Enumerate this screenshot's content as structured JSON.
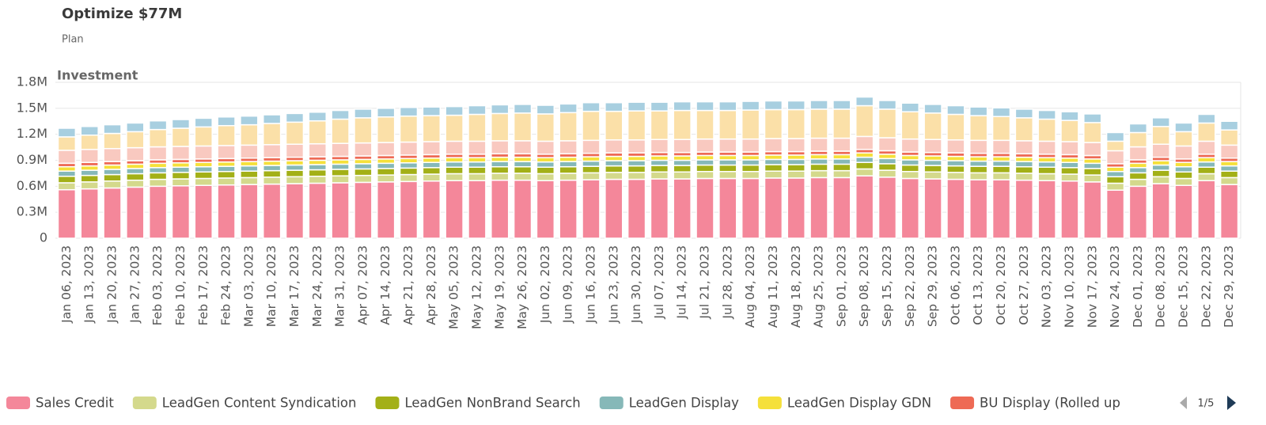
{
  "chart_data": {
    "type": "stacked_bar",
    "title": "Optimize $77M",
    "subtitle": "Plan",
    "panel_title": "Investment",
    "legend_page": "1/5",
    "grid": true,
    "ylim": [
      0,
      1800000
    ],
    "yticks": [
      0,
      {
        "value": 300000,
        "label": "0.3M"
      },
      {
        "value": 600000,
        "label": "0.6M"
      },
      {
        "value": 900000,
        "label": "0.9M"
      },
      {
        "value": 1200000,
        "label": "1.2M"
      },
      {
        "value": 1500000,
        "label": "1.5M"
      },
      {
        "value": 1800000,
        "label": "1.8M"
      }
    ],
    "categories": [
      "Jan 06, 2023",
      "Jan 13, 2023",
      "Jan 20, 2023",
      "Jan 27, 2023",
      "Feb 03, 2023",
      "Feb 10, 2023",
      "Feb 17, 2023",
      "Feb 24, 2023",
      "Mar 03, 2023",
      "Mar 10, 2023",
      "Mar 17, 2023",
      "Mar 24, 2023",
      "Mar 31, 2023",
      "Apr 07, 2023",
      "Apr 14, 2023",
      "Apr 21, 2023",
      "Apr 28, 2023",
      "May 05, 2023",
      "May 12, 2023",
      "May 19, 2023",
      "May 26, 2023",
      "Jun 02, 2023",
      "Jun 09, 2023",
      "Jun 16, 2023",
      "Jun 23, 2023",
      "Jun 30, 2023",
      "Jul 07, 2023",
      "Jul 14, 2023",
      "Jul 21, 2023",
      "Jul 28, 2023",
      "Aug 04, 2023",
      "Aug 11, 2023",
      "Aug 18, 2023",
      "Aug 25, 2023",
      "Sep 01, 2023",
      "Sep 08, 2023",
      "Sep 15, 2023",
      "Sep 22, 2023",
      "Sep 29, 2023",
      "Oct 06, 2023",
      "Oct 13, 2023",
      "Oct 20, 2023",
      "Oct 27, 2023",
      "Nov 03, 2023",
      "Nov 10, 2023",
      "Nov 17, 2023",
      "Nov 24, 2023",
      "Dec 01, 2023",
      "Dec 08, 2023",
      "Dec 15, 2023",
      "Dec 22, 2023",
      "Dec 29, 2023"
    ],
    "series": [
      {
        "name": "Sales Credit",
        "color": "#f4879a",
        "values": [
          560000,
          570000,
          580000,
          590000,
          600000,
          605000,
          610000,
          615000,
          620000,
          625000,
          630000,
          635000,
          640000,
          645000,
          650000,
          655000,
          660000,
          665000,
          665000,
          670000,
          670000,
          665000,
          670000,
          675000,
          680000,
          680000,
          685000,
          685000,
          690000,
          690000,
          690000,
          695000,
          695000,
          700000,
          700000,
          720000,
          705000,
          690000,
          685000,
          680000,
          675000,
          675000,
          670000,
          665000,
          660000,
          650000,
          555000,
          600000,
          630000,
          610000,
          665000,
          620000
        ]
      },
      {
        "name": "LeadGen Content Syndication",
        "color": "#d4d98c",
        "values": [
          80000,
          80000,
          80000,
          80000,
          80000,
          80000,
          80000,
          80000,
          80000,
          80000,
          80000,
          80000,
          80000,
          80000,
          80000,
          80000,
          80000,
          80000,
          80000,
          80000,
          80000,
          80000,
          80000,
          80000,
          80000,
          80000,
          80000,
          80000,
          80000,
          80000,
          80000,
          80000,
          80000,
          80000,
          80000,
          80000,
          80000,
          80000,
          80000,
          80000,
          80000,
          80000,
          80000,
          80000,
          80000,
          80000,
          80000,
          80000,
          80000,
          80000,
          80000,
          80000
        ]
      },
      {
        "name": "LeadGen NonBrand Search",
        "color": "#a3b017",
        "values": [
          75000,
          75000,
          75000,
          75000,
          75000,
          75000,
          75000,
          75000,
          75000,
          75000,
          75000,
          75000,
          75000,
          75000,
          75000,
          75000,
          75000,
          75000,
          75000,
          75000,
          75000,
          75000,
          75000,
          75000,
          75000,
          75000,
          75000,
          75000,
          75000,
          75000,
          75000,
          75000,
          75000,
          75000,
          75000,
          75000,
          75000,
          75000,
          75000,
          75000,
          75000,
          75000,
          75000,
          75000,
          75000,
          75000,
          75000,
          75000,
          75000,
          75000,
          75000,
          75000
        ]
      },
      {
        "name": "LeadGen Display",
        "color": "#86b8b8",
        "values": [
          60000,
          60000,
          60000,
          60000,
          60000,
          60000,
          60000,
          60000,
          60000,
          60000,
          60000,
          60000,
          60000,
          60000,
          60000,
          60000,
          60000,
          60000,
          60000,
          60000,
          60000,
          60000,
          60000,
          60000,
          60000,
          60000,
          60000,
          60000,
          60000,
          60000,
          60000,
          60000,
          60000,
          60000,
          60000,
          60000,
          60000,
          60000,
          60000,
          60000,
          60000,
          60000,
          60000,
          60000,
          60000,
          60000,
          60000,
          60000,
          60000,
          60000,
          60000,
          60000
        ]
      },
      {
        "name": "LeadGen Display GDN",
        "color": "#f5e03a",
        "values": [
          50000,
          50000,
          50000,
          50000,
          50000,
          50000,
          50000,
          50000,
          50000,
          50000,
          50000,
          50000,
          50000,
          50000,
          50000,
          50000,
          50000,
          50000,
          50000,
          50000,
          50000,
          50000,
          50000,
          50000,
          50000,
          50000,
          50000,
          50000,
          50000,
          50000,
          50000,
          50000,
          50000,
          50000,
          50000,
          50000,
          50000,
          50000,
          50000,
          50000,
          50000,
          50000,
          50000,
          50000,
          50000,
          50000,
          50000,
          50000,
          50000,
          50000,
          50000,
          50000
        ]
      },
      {
        "name": "BU Display (Rolled up",
        "color": "#ee6a55",
        "values": [
          40000,
          40000,
          40000,
          40000,
          40000,
          40000,
          40000,
          40000,
          40000,
          40000,
          40000,
          40000,
          40000,
          40000,
          40000,
          40000,
          40000,
          40000,
          40000,
          40000,
          40000,
          40000,
          40000,
          40000,
          40000,
          40000,
          40000,
          40000,
          40000,
          40000,
          40000,
          40000,
          40000,
          40000,
          40000,
          40000,
          40000,
          40000,
          40000,
          40000,
          40000,
          40000,
          40000,
          40000,
          40000,
          40000,
          40000,
          40000,
          40000,
          40000,
          40000,
          40000
        ]
      },
      {
        "color": "#f9c9c0",
        "values": [
          150000,
          150000,
          150000,
          150000,
          150000,
          150000,
          150000,
          150000,
          150000,
          150000,
          150000,
          150000,
          150000,
          150000,
          150000,
          150000,
          150000,
          150000,
          150000,
          150000,
          150000,
          150000,
          150000,
          150000,
          150000,
          150000,
          150000,
          150000,
          150000,
          150000,
          150000,
          150000,
          150000,
          150000,
          150000,
          150000,
          150000,
          150000,
          150000,
          150000,
          150000,
          150000,
          150000,
          150000,
          150000,
          150000,
          150000,
          150000,
          150000,
          150000,
          150000,
          150000
        ]
      },
      {
        "color": "#fbe0a8",
        "values": [
          155000,
          165000,
          175000,
          185000,
          200000,
          210000,
          220000,
          230000,
          235000,
          245000,
          255000,
          265000,
          280000,
          290000,
          295000,
          300000,
          300000,
          300000,
          310000,
          315000,
          320000,
          315000,
          325000,
          335000,
          330000,
          335000,
          330000,
          335000,
          330000,
          330000,
          335000,
          335000,
          335000,
          335000,
          335000,
          355000,
          330000,
          315000,
          305000,
          295000,
          285000,
          275000,
          265000,
          255000,
          245000,
          230000,
          110000,
          165000,
          205000,
          165000,
          210000,
          175000
        ]
      },
      {
        "color": "#a8cfe0",
        "values": [
          100000,
          100000,
          100000,
          100000,
          100000,
          100000,
          100000,
          100000,
          100000,
          100000,
          100000,
          100000,
          100000,
          100000,
          100000,
          100000,
          100000,
          100000,
          100000,
          100000,
          100000,
          100000,
          100000,
          100000,
          100000,
          100000,
          100000,
          100000,
          100000,
          100000,
          100000,
          100000,
          100000,
          100000,
          100000,
          100000,
          100000,
          100000,
          100000,
          100000,
          100000,
          100000,
          100000,
          100000,
          100000,
          100000,
          100000,
          100000,
          100000,
          100000,
          100000,
          100000
        ]
      }
    ]
  }
}
